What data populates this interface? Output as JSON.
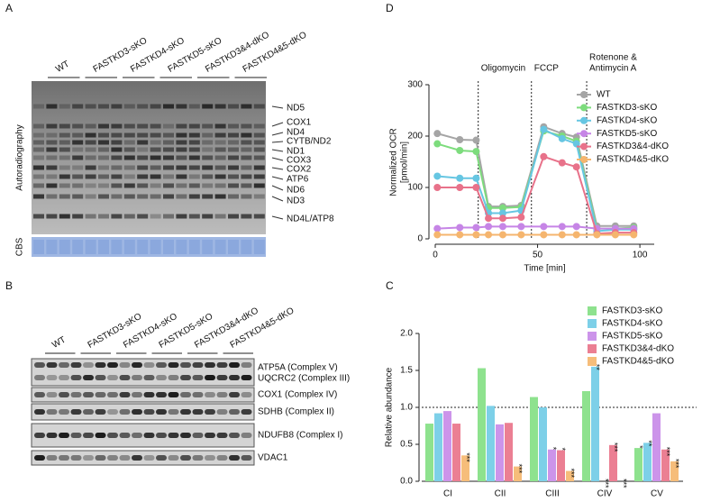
{
  "panel_a": {
    "letter": "A",
    "lanes": [
      "WT",
      "FASTKD3-sKO",
      "FASTKD4-sKO",
      "FASTKD5-sKO",
      "FASTKD3&4-dKO",
      "FASTKD4&5-dKO"
    ],
    "ylabel": "Autoradiography",
    "loading_label": "CBS",
    "bands": [
      "ND5",
      "COX1",
      "ND4",
      "CYTB/ND2",
      "ND1",
      "COX3",
      "COX2",
      "ATP6",
      "ND6",
      "ND3",
      "ND4L/ATP8"
    ]
  },
  "panel_b": {
    "letter": "B",
    "lanes": [
      "WT",
      "FASTKD3-sKO",
      "FASTKD4-sKO",
      "FASTKD5-sKO",
      "FASTKD3&4-dKO",
      "FASTKD4&5-dKO"
    ],
    "bands": [
      "ATP5A (Complex V)",
      "UQCRC2 (Complex III)",
      "COX1 (Complex IV)",
      "SDHB (Complex II)",
      "NDUFB8 (Complex I)",
      "VDAC1"
    ]
  },
  "chart_data": [
    {
      "type": "line",
      "letter": "D",
      "ylabel": [
        "Normalized OCR",
        "[pmol/min]"
      ],
      "xlabel": "Time [min]",
      "x": [
        1,
        12,
        20,
        26,
        33,
        42,
        53,
        62,
        69,
        79,
        88,
        97
      ],
      "xlim": [
        0,
        107
      ],
      "xticks": [
        0,
        50,
        100
      ],
      "ylim": [
        0,
        300
      ],
      "yticks": [
        0,
        100,
        200,
        300
      ],
      "annotations": [
        {
          "text": [
            "Oligomycin"
          ],
          "x": 21
        },
        {
          "text": [
            "FCCP"
          ],
          "x": 47
        },
        {
          "text": [
            "Rotenone &",
            "Antimycin A"
          ],
          "x": 74
        }
      ],
      "series": [
        {
          "name": "WT",
          "color": "#a5a5a5",
          "values": [
            205,
            193,
            192,
            63,
            63,
            65,
            218,
            205,
            198,
            25,
            25,
            25
          ]
        },
        {
          "name": "FASTKD3-sKO",
          "color": "#7ddc7d",
          "values": [
            185,
            172,
            170,
            60,
            60,
            62,
            210,
            200,
            190,
            20,
            20,
            22
          ]
        },
        {
          "name": "FASTKD4-sKO",
          "color": "#66c6e2",
          "values": [
            122,
            118,
            118,
            50,
            50,
            55,
            213,
            195,
            185,
            15,
            18,
            18
          ]
        },
        {
          "name": "FASTKD5-sKO",
          "color": "#c685e6",
          "values": [
            20,
            22,
            22,
            24,
            24,
            24,
            24,
            24,
            24,
            20,
            20,
            20
          ]
        },
        {
          "name": "FASTKD3&4-dKO",
          "color": "#e8728a",
          "values": [
            100,
            100,
            100,
            40,
            40,
            42,
            160,
            148,
            140,
            10,
            12,
            12
          ]
        },
        {
          "name": "FASTKD4&5-dKO",
          "color": "#f5b56e",
          "values": [
            8,
            8,
            8,
            8,
            8,
            8,
            8,
            8,
            8,
            8,
            8,
            8
          ]
        }
      ]
    },
    {
      "type": "bar",
      "letter": "C",
      "ylabel": "Relative abundance",
      "categories": [
        "CI",
        "CII",
        "CIII",
        "CIV",
        "CV"
      ],
      "ylim": [
        0,
        2
      ],
      "yticks": [
        {
          "value": 0,
          "label": "0.0"
        },
        0.5,
        {
          "value": 1,
          "label": "1.0"
        },
        1.5,
        {
          "value": 2,
          "label": "2.0"
        }
      ],
      "refline": 1,
      "series": [
        {
          "name": "FASTKD3-sKO",
          "color": "#8ee28e",
          "values": [
            0.78,
            1.53,
            1.14,
            1.22,
            0.45
          ],
          "stars": [
            null,
            null,
            null,
            null,
            "*"
          ]
        },
        {
          "name": "FASTKD4-sKO",
          "color": "#7dd0e8",
          "values": [
            0.92,
            1.02,
            1.0,
            1.55,
            0.52
          ],
          "stars": [
            null,
            null,
            null,
            "**",
            "**"
          ]
        },
        {
          "name": "FASTKD5-sKO",
          "color": "#cc94ea",
          "values": [
            0.95,
            0.77,
            0.43,
            null,
            0.92
          ],
          "stars": [
            null,
            null,
            "*",
            "***",
            null
          ]
        },
        {
          "name": "FASTKD3&4-dKO",
          "color": "#eb7f93",
          "values": [
            0.78,
            0.79,
            0.42,
            0.49,
            0.43
          ],
          "stars": [
            null,
            null,
            "*",
            "***",
            "***"
          ]
        },
        {
          "name": "FASTKD4&5-dKO",
          "color": "#f6bd7a",
          "values": [
            0.35,
            0.2,
            0.14,
            null,
            0.27
          ],
          "stars": [
            "***",
            "***",
            "***",
            "***",
            "***"
          ]
        }
      ]
    }
  ]
}
